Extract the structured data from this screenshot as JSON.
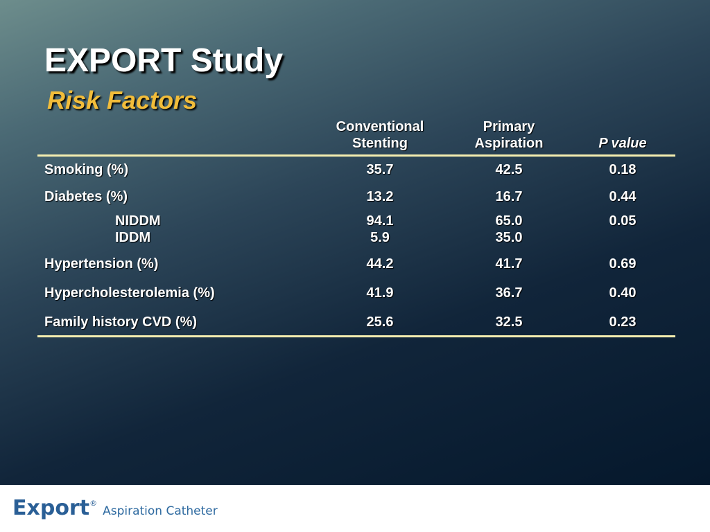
{
  "slide": {
    "title": "EXPORT Study",
    "subtitle": "Risk Factors"
  },
  "table": {
    "headers": {
      "conventional_line1": "Conventional",
      "conventional_line2": "Stenting",
      "primary_line1": "Primary",
      "primary_line2": "Aspiration",
      "p_value": "P value"
    },
    "rows": [
      {
        "label": "Smoking (%)",
        "conventional": "35.7",
        "primary": "42.5",
        "p": "0.18"
      },
      {
        "label": "Diabetes (%)",
        "conventional": "13.2",
        "primary": "16.7",
        "p": "0.44"
      },
      {
        "label": "NIDDM",
        "conventional": "94.1",
        "primary": "65.0",
        "p": "0.05"
      },
      {
        "label": "IDDM",
        "conventional": "5.9",
        "primary": "35.0",
        "p": ""
      },
      {
        "label": "Hypertension (%)",
        "conventional": "44.2",
        "primary": "41.7",
        "p": "0.69"
      },
      {
        "label": "Hypercholesterolemia (%)",
        "conventional": "41.9",
        "primary": "36.7",
        "p": "0.40"
      },
      {
        "label": "Family history CVD (%)",
        "conventional": "25.6",
        "primary": "32.5",
        "p": "0.23"
      }
    ]
  },
  "footer": {
    "brand_name": "Export",
    "registered_mark": "®",
    "tagline": "Aspiration Catheter"
  },
  "colors": {
    "title": "#ffffff",
    "subtitle": "#f2bd3a",
    "rule": "#f5eeb0",
    "brand": "#2a5f96"
  }
}
